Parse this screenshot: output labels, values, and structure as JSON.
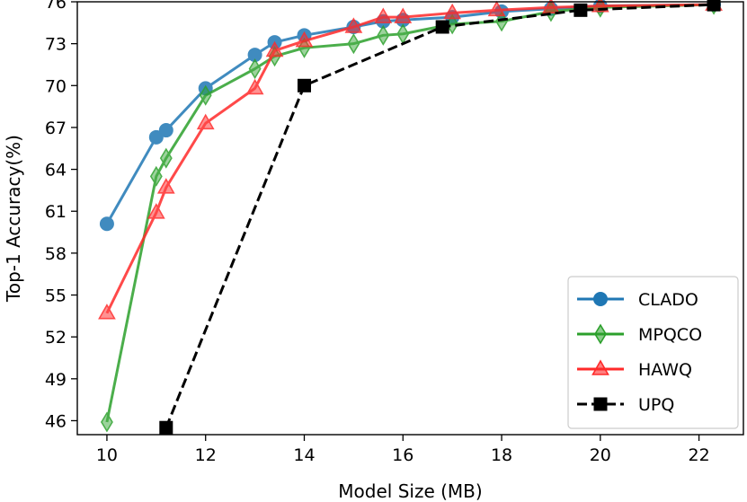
{
  "chart_data": {
    "type": "line",
    "title": "",
    "xlabel": "Model Size (MB)",
    "ylabel": "Top-1 Accuracy(%)",
    "xlim": [
      9.4,
      22.9
    ],
    "ylim": [
      45,
      76
    ],
    "xticks": [
      10,
      12,
      14,
      16,
      18,
      20,
      22
    ],
    "yticks": [
      46,
      49,
      52,
      55,
      58,
      61,
      64,
      67,
      70,
      73,
      76
    ],
    "grid": false,
    "legend_position": "bottom-right",
    "series": [
      {
        "name": "CLADO",
        "color": "#1f77b4",
        "marker": "circle",
        "linestyle": "solid",
        "x": [
          10.0,
          11.0,
          11.2,
          12.0,
          13.0,
          13.4,
          14.0,
          15.0,
          15.6,
          16.0,
          17.0,
          18.0,
          19.0,
          20.0,
          22.3
        ],
        "y": [
          60.1,
          66.3,
          66.8,
          69.8,
          72.2,
          73.1,
          73.6,
          74.2,
          74.6,
          74.7,
          74.9,
          75.3,
          75.5,
          75.7,
          75.8
        ]
      },
      {
        "name": "MPQCO",
        "color": "#2ca02c",
        "marker": "thin_diamond",
        "linestyle": "solid",
        "x": [
          10.0,
          11.0,
          11.2,
          12.0,
          13.0,
          13.4,
          14.0,
          15.0,
          15.6,
          16.0,
          17.0,
          18.0,
          19.0,
          20.0,
          22.3
        ],
        "y": [
          45.9,
          63.5,
          64.8,
          69.3,
          71.2,
          72.1,
          72.7,
          73.0,
          73.6,
          73.7,
          74.4,
          74.6,
          75.3,
          75.6,
          75.8
        ]
      },
      {
        "name": "HAWQ",
        "color": "#ff2a2a",
        "marker": "triangle",
        "linestyle": "solid",
        "x": [
          10.0,
          11.0,
          11.2,
          12.0,
          13.0,
          13.4,
          14.0,
          15.0,
          15.6,
          16.0,
          17.0,
          17.9,
          19.0,
          20.0,
          22.3
        ],
        "y": [
          53.7,
          60.9,
          62.7,
          67.3,
          69.8,
          72.5,
          73.2,
          74.2,
          74.9,
          74.9,
          75.2,
          75.4,
          75.6,
          75.7,
          75.8
        ]
      },
      {
        "name": "UPQ",
        "color": "#000000",
        "marker": "square",
        "linestyle": "dashed",
        "x": [
          11.2,
          14.0,
          16.8,
          19.6,
          22.3
        ],
        "y": [
          45.5,
          70.0,
          74.2,
          75.4,
          75.8
        ]
      }
    ]
  }
}
